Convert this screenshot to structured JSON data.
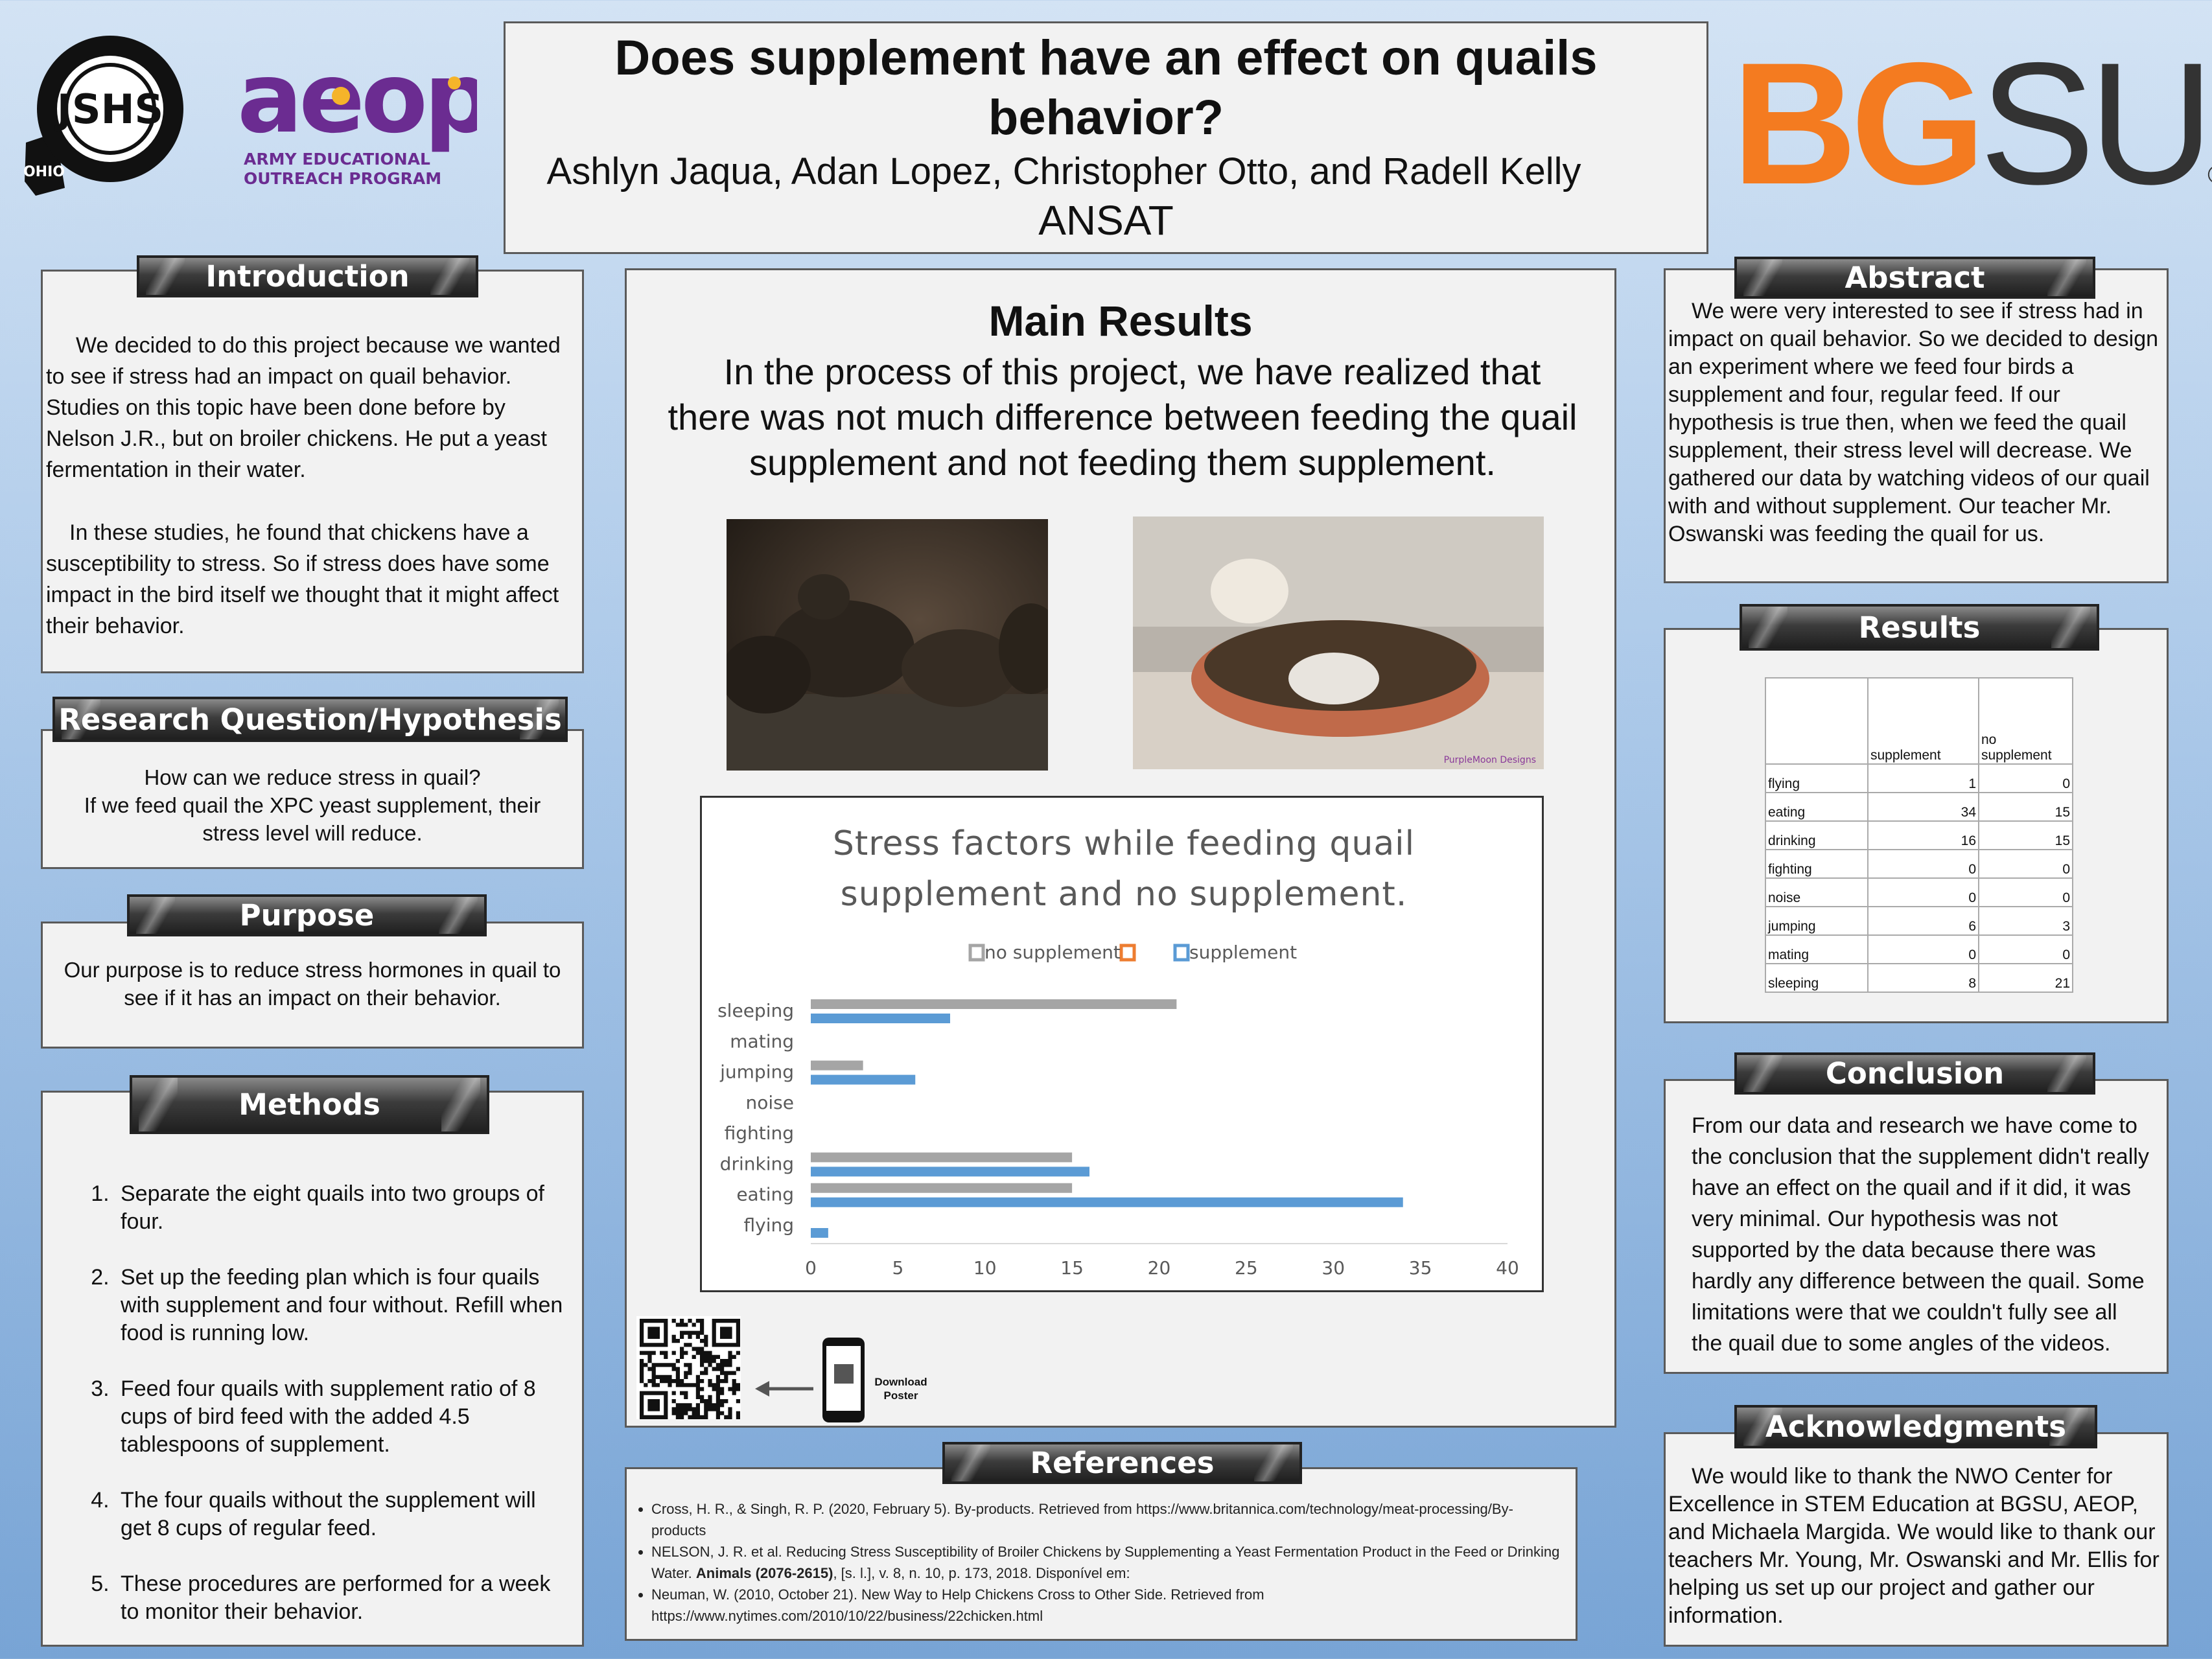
{
  "header": {
    "title": "Does supplement have an effect on quails behavior?",
    "authors": "Ashlyn Jaqua, Adan Lopez, Christopher Otto, and Radell Kelly",
    "school": "ANSAT"
  },
  "logos": {
    "jshs": "JSHS",
    "ohio": "OHIO",
    "aeop": "aeop",
    "aeop_sub_1": "ARMY EDUCATIONAL",
    "aeop_sub_2": "OUTREACH PROGRAM",
    "bgsu_bg": "BG",
    "bgsu_su": "SU",
    "registered": "®"
  },
  "introduction": {
    "heading": "Introduction",
    "paragraphs": [
      "We decided to do this project because we wanted to see if stress had an impact on quail behavior. Studies on this topic have been done before by Nelson J.R., but on broiler chickens. He put a yeast fermentation in their water.",
      "In these studies, he found that chickens have a susceptibility to stress. So if stress does have some impact in the bird itself we thought that it might affect their behavior."
    ]
  },
  "research": {
    "heading": "Research Question/Hypothesis",
    "lines": [
      "How can we reduce stress in quail?",
      "If we feed quail the XPC yeast supplement, their stress level will reduce."
    ]
  },
  "purpose": {
    "heading": "Purpose",
    "text": "Our purpose is to reduce stress hormones in quail to see if it has an impact on their behavior."
  },
  "methods": {
    "heading": "Methods",
    "steps": [
      "Separate the eight quails into two groups of four.",
      "Set up the feeding plan which is four quails with supplement and four without. Refill when food is running low.",
      "Feed four quails with supplement ratio of 8 cups of bird feed with the added 4.5 tablespoons of supplement.",
      "The four quails without the supplement will get 8 cups of regular feed.",
      "These procedures are performed for a week to monitor their behavior."
    ]
  },
  "main_results": {
    "heading": "Main Results",
    "text": "In the process of this project, we have realized that there was not much difference between feeding the quail supplement and not feeding them supplement.",
    "photo_credit": "PurpleMoon Designs"
  },
  "qr": {
    "label": "Download Poster"
  },
  "references": {
    "heading": "References",
    "items": [
      [
        "Cross, H. R., & Singh, R. P. (2020, February 5). By-products. Retrieved from https://www.britannica.com/technology/meat-processing/By-products"
      ],
      [
        "NELSON, J. R. et al. Reducing Stress Susceptibility of Broiler Chickens by Supplementing a Yeast Fermentation Product in the Feed or Drinking Water. ",
        "Animals (2076-2615)",
        ", [s. l.], v. 8, n. 10, p. 173, 2018. Disponível em:"
      ],
      [
        "Neuman, W. (2010, October 21). New Way to Help Chickens Cross to Other Side. Retrieved from https://www.nytimes.com/2010/10/22/business/22chicken.html"
      ]
    ]
  },
  "abstract": {
    "heading": "Abstract",
    "text": "We were very interested to see if stress had in impact on quail behavior. So we decided to design an experiment where we feed four birds a supplement and four, regular feed. If our hypothesis is true then, when we feed the quail supplement, their stress level will decrease. We gathered our data by watching videos of our quail with and without supplement. Our teacher Mr. Oswanski was feeding the quail for us."
  },
  "results": {
    "heading": "Results",
    "table": {
      "header": [
        "supplement",
        "no supplement"
      ],
      "rows": [
        [
          "flying",
          "1",
          "0"
        ],
        [
          "eating",
          "34",
          "15"
        ],
        [
          "drinking",
          "16",
          "15"
        ],
        [
          "fighting",
          "0",
          "0"
        ],
        [
          "noise",
          "0",
          "0"
        ],
        [
          "jumping",
          "6",
          "3"
        ],
        [
          "mating",
          "0",
          "0"
        ],
        [
          "sleeping",
          "8",
          "21"
        ]
      ]
    }
  },
  "conclusion": {
    "heading": "Conclusion",
    "text": "From our data and research we have come to the conclusion that the supplement didn't really have an effect on the quail and if it did, it was very minimal. Our hypothesis was not supported by the data because there was hardly any difference between the quail. Some limitations were that we couldn't fully see all the quail due to some angles of the videos."
  },
  "acknowledgments": {
    "heading": "Acknowledgments",
    "text": "We would like to thank the NWO Center for Excellence in STEM  Education at BGSU, AEOP,  and Michaela Margida. We would like to thank our teachers Mr. Young, Mr. Oswanski and Mr. Ellis for helping us set up our project and gather our information."
  },
  "chart_data": {
    "type": "hbar",
    "title": [
      "Stress factors while feeding quail",
      "supplement and no supplement."
    ],
    "categories": [
      "flying",
      "eating",
      "drinking",
      "fighting",
      "noise",
      "jumping",
      "mating",
      "sleeping"
    ],
    "series": [
      {
        "name": "no supplement",
        "color": "#a5a5a5",
        "values": [
          0,
          15,
          15,
          0,
          0,
          3,
          0,
          21
        ]
      },
      {
        "name": "supplement",
        "color": "#5b9bd5",
        "values": [
          1,
          34,
          16,
          0,
          0,
          6,
          0,
          8
        ]
      }
    ],
    "xlim": [
      0,
      40
    ],
    "xticks": [
      0,
      5,
      10,
      15,
      20,
      25,
      30,
      35,
      40
    ],
    "grid": false
  }
}
